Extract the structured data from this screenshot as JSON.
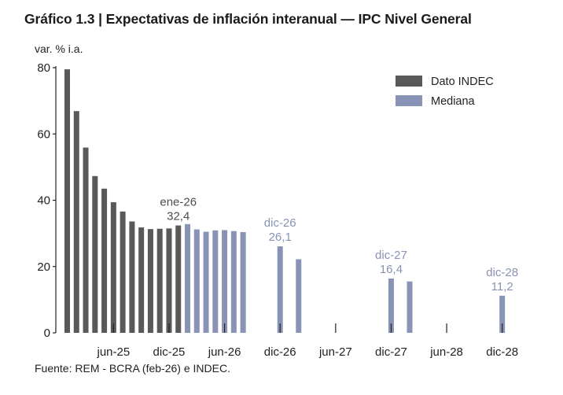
{
  "title": "Gráfico 1.3 | Expectativas de inflación interanual — IPC Nivel General",
  "source": "Fuente: REM - BCRA (feb-26) e INDEC.",
  "colors": {
    "indec": "#595959",
    "mediana": "#8993b6",
    "axis": "#222222"
  },
  "chart_data": {
    "type": "bar",
    "ylabel": "var. % i.a.",
    "ylim": [
      0,
      80
    ],
    "yticks": [
      0,
      20,
      40,
      60,
      80
    ],
    "grid": false,
    "legend_position": "top-right",
    "xticks": [
      {
        "slot": 5,
        "label": "jun-25"
      },
      {
        "slot": 11,
        "label": "dic-25"
      },
      {
        "slot": 17,
        "label": "jun-26"
      },
      {
        "slot": 23,
        "label": "dic-26"
      },
      {
        "slot": 29,
        "label": "jun-27"
      },
      {
        "slot": 35,
        "label": "dic-27"
      },
      {
        "slot": 41,
        "label": "jun-28"
      },
      {
        "slot": 47,
        "label": "dic-28"
      }
    ],
    "series": [
      {
        "name": "Dato INDEC",
        "color": "#595959",
        "points": [
          {
            "slot": 0,
            "value": 79.5
          },
          {
            "slot": 1,
            "value": 66.9
          },
          {
            "slot": 2,
            "value": 55.9
          },
          {
            "slot": 3,
            "value": 47.3
          },
          {
            "slot": 4,
            "value": 43.5
          },
          {
            "slot": 5,
            "value": 39.4
          },
          {
            "slot": 6,
            "value": 36.6
          },
          {
            "slot": 7,
            "value": 33.6
          },
          {
            "slot": 8,
            "value": 31.8
          },
          {
            "slot": 9,
            "value": 31.3
          },
          {
            "slot": 10,
            "value": 31.4
          },
          {
            "slot": 11,
            "value": 31.5
          },
          {
            "slot": 12,
            "value": 32.4
          }
        ]
      },
      {
        "name": "Mediana",
        "color": "#8993b6",
        "points": [
          {
            "slot": 13,
            "value": 32.8
          },
          {
            "slot": 14,
            "value": 31.2
          },
          {
            "slot": 15,
            "value": 30.5
          },
          {
            "slot": 16,
            "value": 30.9
          },
          {
            "slot": 17,
            "value": 31.0
          },
          {
            "slot": 18,
            "value": 30.7
          },
          {
            "slot": 19,
            "value": 30.4
          },
          {
            "slot": 23,
            "value": 26.1
          },
          {
            "slot": 25,
            "value": 22.2
          },
          {
            "slot": 35,
            "value": 16.4
          },
          {
            "slot": 37,
            "value": 15.5
          },
          {
            "slot": 47,
            "value": 11.2
          }
        ]
      }
    ],
    "annotations": [
      {
        "slot": 12,
        "value": 32.4,
        "label": "ene-26",
        "value_label": "32,4",
        "series": "Dato INDEC"
      },
      {
        "slot": 23,
        "value": 26.1,
        "label": "dic-26",
        "value_label": "26,1",
        "series": "Mediana"
      },
      {
        "slot": 35,
        "value": 16.4,
        "label": "dic-27",
        "value_label": "16,4",
        "series": "Mediana"
      },
      {
        "slot": 47,
        "value": 11.2,
        "label": "dic-28",
        "value_label": "11,2",
        "series": "Mediana"
      }
    ]
  }
}
